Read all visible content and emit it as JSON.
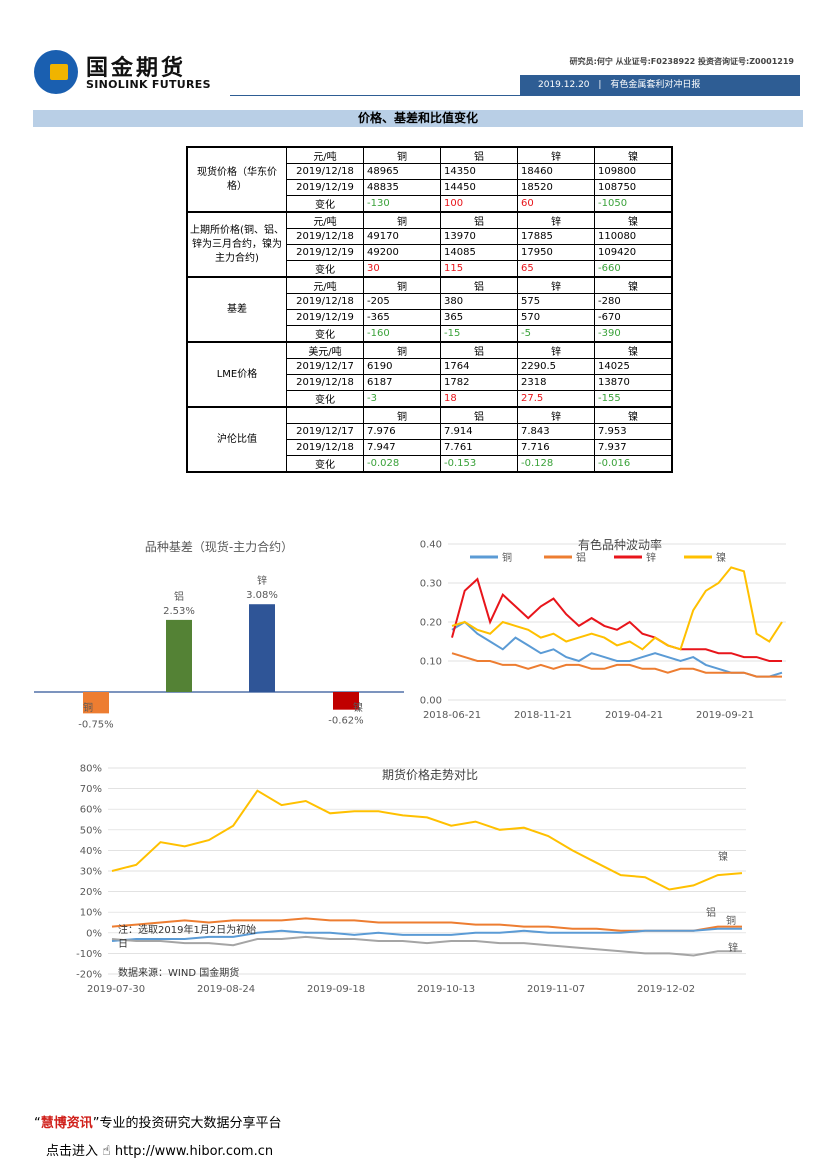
{
  "header": {
    "logo_cn": "国金期货",
    "logo_en": "SINOLINK FUTURES",
    "analyst": "研究员:何宁  从业证号:F0238922  投资咨询证号:Z0001219",
    "date": "2019.12.20",
    "report": "有色金属套利对冲日报"
  },
  "section_title": "价格、基差和比值变化",
  "table": {
    "groups": [
      {
        "name": "现货价格（华东价格）",
        "rows": [
          {
            "c": "元/吨",
            "v": [
              "铜",
              "铝",
              "锌",
              "镍"
            ],
            "type": "hd"
          },
          {
            "c": "2019/12/18",
            "v": [
              "48965",
              "14350",
              "18460",
              "109800"
            ]
          },
          {
            "c": "2019/12/19",
            "v": [
              "48835",
              "14450",
              "18520",
              "108750"
            ]
          },
          {
            "c": "变化",
            "v": [
              "-130",
              "100",
              "60",
              "-1050"
            ],
            "colors": [
              "grn",
              "red",
              "red",
              "grn"
            ]
          }
        ]
      },
      {
        "name": "上期所价格(铜、铝、锌为三月合约，镍为主力合约)",
        "rows": [
          {
            "c": "元/吨",
            "v": [
              "铜",
              "铝",
              "锌",
              "镍"
            ],
            "type": "hd"
          },
          {
            "c": "2019/12/18",
            "v": [
              "49170",
              "13970",
              "17885",
              "110080"
            ]
          },
          {
            "c": "2019/12/19",
            "v": [
              "49200",
              "14085",
              "17950",
              "109420"
            ]
          },
          {
            "c": "变化",
            "v": [
              "30",
              "115",
              "65",
              "-660"
            ],
            "colors": [
              "red",
              "red",
              "red",
              "grn"
            ]
          }
        ]
      },
      {
        "name": "基差",
        "rows": [
          {
            "c": "元/吨",
            "v": [
              "铜",
              "铝",
              "锌",
              "镍"
            ],
            "type": "hd"
          },
          {
            "c": "2019/12/18",
            "v": [
              "-205",
              "380",
              "575",
              "-280"
            ]
          },
          {
            "c": "2019/12/19",
            "v": [
              "-365",
              "365",
              "570",
              "-670"
            ]
          },
          {
            "c": "变化",
            "v": [
              "-160",
              "-15",
              "-5",
              "-390"
            ],
            "colors": [
              "grn",
              "grn",
              "grn",
              "grn"
            ]
          }
        ]
      },
      {
        "name": "LME价格",
        "rows": [
          {
            "c": "美元/吨",
            "v": [
              "铜",
              "铝",
              "锌",
              "镍"
            ],
            "type": "hd"
          },
          {
            "c": "2019/12/17",
            "v": [
              "6190",
              "1764",
              "2290.5",
              "14025"
            ]
          },
          {
            "c": "2019/12/18",
            "v": [
              "6187",
              "1782",
              "2318",
              "13870"
            ]
          },
          {
            "c": "变化",
            "v": [
              "-3",
              "18",
              "27.5",
              "-155"
            ],
            "colors": [
              "grn",
              "red",
              "red",
              "grn"
            ]
          }
        ]
      },
      {
        "name": "沪伦比值",
        "rows": [
          {
            "c": "",
            "v": [
              "铜",
              "铝",
              "锌",
              "镍"
            ],
            "type": "hd"
          },
          {
            "c": "2019/12/17",
            "v": [
              "7.976",
              "7.914",
              "7.843",
              "7.953"
            ]
          },
          {
            "c": "2019/12/18",
            "v": [
              "7.947",
              "7.761",
              "7.716",
              "7.937"
            ]
          },
          {
            "c": "变化",
            "v": [
              "-0.028",
              "-0.153",
              "-0.128",
              "-0.016"
            ],
            "colors": [
              "grn",
              "grn",
              "grn",
              "grn"
            ]
          }
        ]
      }
    ]
  },
  "chart_data": [
    {
      "type": "bar",
      "title": "品种基差（现货-主力合约）",
      "categories": [
        "铜",
        "铝",
        "锌",
        "镍"
      ],
      "values": [
        -0.75,
        2.53,
        3.08,
        -0.62
      ],
      "value_labels": [
        "-0.75%",
        "2.53%",
        "3.08%",
        "-0.62%"
      ],
      "colors": [
        "#ed7d31",
        "#548235",
        "#2f5597",
        "#c00000"
      ]
    },
    {
      "type": "line",
      "title": "有色品种波动率",
      "x_ticks": [
        "2018-06-21",
        "2018-11-21",
        "2019-04-21",
        "2019-09-21"
      ],
      "y_ticks": [
        "0.00",
        "0.10",
        "0.20",
        "0.30",
        "0.40"
      ],
      "ylim": [
        0,
        0.4
      ],
      "legend": "top",
      "series": [
        {
          "name": "铜",
          "color": "#5b9bd5",
          "values": [
            0.18,
            0.2,
            0.17,
            0.15,
            0.13,
            0.16,
            0.14,
            0.12,
            0.13,
            0.11,
            0.1,
            0.12,
            0.11,
            0.1,
            0.1,
            0.11,
            0.12,
            0.11,
            0.1,
            0.11,
            0.09,
            0.08,
            0.07,
            0.07,
            0.06,
            0.06,
            0.07
          ]
        },
        {
          "name": "铝",
          "color": "#ed7d31",
          "values": [
            0.12,
            0.11,
            0.1,
            0.1,
            0.09,
            0.09,
            0.08,
            0.09,
            0.08,
            0.09,
            0.09,
            0.08,
            0.08,
            0.09,
            0.09,
            0.08,
            0.08,
            0.07,
            0.08,
            0.08,
            0.07,
            0.07,
            0.07,
            0.07,
            0.06,
            0.06,
            0.06
          ]
        },
        {
          "name": "锌",
          "color": "#e8151b",
          "values": [
            0.16,
            0.28,
            0.31,
            0.2,
            0.27,
            0.24,
            0.21,
            0.24,
            0.26,
            0.22,
            0.19,
            0.21,
            0.19,
            0.18,
            0.2,
            0.17,
            0.16,
            0.14,
            0.13,
            0.13,
            0.13,
            0.12,
            0.12,
            0.11,
            0.11,
            0.1,
            0.1
          ]
        },
        {
          "name": "镍",
          "color": "#ffc000",
          "values": [
            0.19,
            0.2,
            0.18,
            0.17,
            0.2,
            0.19,
            0.18,
            0.16,
            0.17,
            0.15,
            0.16,
            0.17,
            0.16,
            0.14,
            0.15,
            0.13,
            0.16,
            0.14,
            0.13,
            0.23,
            0.28,
            0.3,
            0.34,
            0.33,
            0.17,
            0.15,
            0.2
          ]
        }
      ]
    },
    {
      "type": "line",
      "title": "期货价格走势对比",
      "x_ticks": [
        "2019-07-30",
        "2019-08-24",
        "2019-09-18",
        "2019-10-13",
        "2019-11-07",
        "2019-12-02"
      ],
      "y_ticks": [
        "80%",
        "70%",
        "60%",
        "50%",
        "40%",
        "30%",
        "20%",
        "10%",
        "0%",
        "-10%",
        "-20%"
      ],
      "ylim": [
        -20,
        80
      ],
      "note": "注：选取2019年1月2日为初始日",
      "source": "数据来源：WIND 国金期货",
      "series": [
        {
          "name": "镍",
          "color": "#ffc000",
          "values": [
            30,
            33,
            44,
            42,
            45,
            52,
            69,
            62,
            64,
            58,
            59,
            59,
            57,
            56,
            52,
            54,
            50,
            51,
            47,
            40,
            34,
            28,
            27,
            21,
            23,
            28,
            29
          ]
        },
        {
          "name": "铝",
          "color": "#ed7d31",
          "values": [
            3,
            4,
            5,
            6,
            5,
            6,
            6,
            6,
            7,
            6,
            6,
            5,
            5,
            5,
            5,
            4,
            4,
            3,
            3,
            2,
            2,
            1,
            1,
            1,
            1,
            3,
            3
          ]
        },
        {
          "name": "铜",
          "color": "#5b9bd5",
          "values": [
            -4,
            -3,
            -3,
            -3,
            -2,
            -2,
            0,
            1,
            0,
            0,
            -1,
            0,
            -1,
            -1,
            -1,
            0,
            0,
            1,
            0,
            0,
            0,
            0,
            1,
            1,
            1,
            2,
            2
          ]
        },
        {
          "name": "锌",
          "color": "#a5a5a5",
          "values": [
            -3,
            -4,
            -4,
            -5,
            -5,
            -6,
            -3,
            -3,
            -2,
            -3,
            -3,
            -4,
            -4,
            -5,
            -4,
            -4,
            -5,
            -5,
            -6,
            -7,
            -8,
            -9,
            -10,
            -10,
            -11,
            -9,
            -9
          ]
        }
      ]
    }
  ],
  "footer": {
    "line1_quote_open": "“",
    "line1_brand": "慧博资讯",
    "line1_rest": "”专业的投资研究大数据分享平台",
    "line2": "点击进入",
    "line2_url": "http://www.hibor.com.cn"
  }
}
